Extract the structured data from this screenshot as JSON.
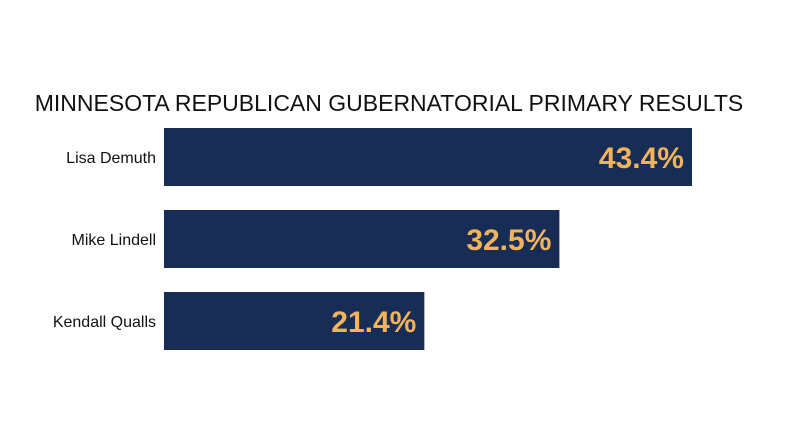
{
  "chart_data": {
    "type": "bar",
    "orientation": "horizontal",
    "title": "MINNESOTA REPUBLICAN GUBERNATORIAL PRIMARY RESULTS",
    "categories": [
      "Lisa Demuth",
      "Mike Lindell",
      "Kendall Qualls"
    ],
    "values": [
      43.4,
      32.5,
      21.4
    ],
    "value_labels": [
      "43.4%",
      "32.5%",
      "21.4%"
    ],
    "xlabel": "",
    "ylabel": "",
    "xlim": [
      0,
      43.4
    ],
    "grid": false,
    "legend": "none",
    "colors": {
      "bar": "#172d55",
      "value_text": "#f3b35a",
      "text": "#111111"
    }
  }
}
